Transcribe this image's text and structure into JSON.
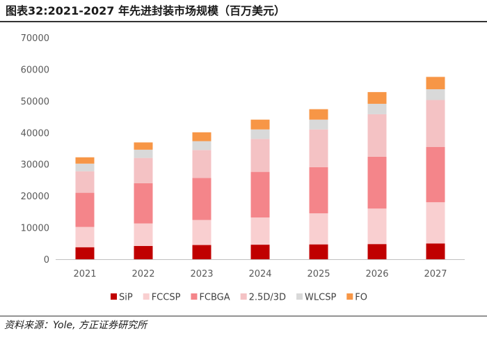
{
  "figure": {
    "title": "图表32:2021-2027 年先进封装市场规模（百万美元）",
    "source": "资料来源：Yole, 方正证券研究所"
  },
  "chart_data": {
    "type": "bar",
    "stacked": true,
    "title": "2021-2027 年先进封装市场规模（百万美元）",
    "xlabel": "",
    "ylabel": "",
    "ylim": [
      0,
      70000
    ],
    "yticks": [
      0,
      10000,
      20000,
      30000,
      40000,
      50000,
      60000,
      70000
    ],
    "ytick_labels": [
      "0",
      "10000",
      "20000",
      "30000",
      "40000",
      "50000",
      "60000",
      "70000"
    ],
    "categories": [
      "2021",
      "2022",
      "2023",
      "2024",
      "2025",
      "2026",
      "2027"
    ],
    "legend_position": "bottom",
    "grid": false,
    "series": [
      {
        "name": "SiP",
        "color": "#c00000",
        "values": [
          3800,
          4200,
          4500,
          4600,
          4700,
          4800,
          5000
        ]
      },
      {
        "name": "FCCSP",
        "color": "#f9cfd0",
        "values": [
          6400,
          7100,
          7900,
          8600,
          9800,
          11200,
          13000
        ]
      },
      {
        "name": "FCBGA",
        "color": "#f4858a",
        "values": [
          10800,
          12700,
          13300,
          14400,
          14600,
          16400,
          17500
        ]
      },
      {
        "name": "2.5D/3D",
        "color": "#f4c2c4",
        "values": [
          6800,
          8000,
          8800,
          10400,
          11900,
          13400,
          14800
        ]
      },
      {
        "name": "WLCSP",
        "color": "#d9d9d9",
        "values": [
          2400,
          2600,
          2800,
          3000,
          3100,
          3300,
          3400
        ]
      },
      {
        "name": "FO",
        "color": "#f79646",
        "values": [
          2000,
          2300,
          2800,
          3100,
          3300,
          3700,
          3900
        ]
      }
    ]
  }
}
